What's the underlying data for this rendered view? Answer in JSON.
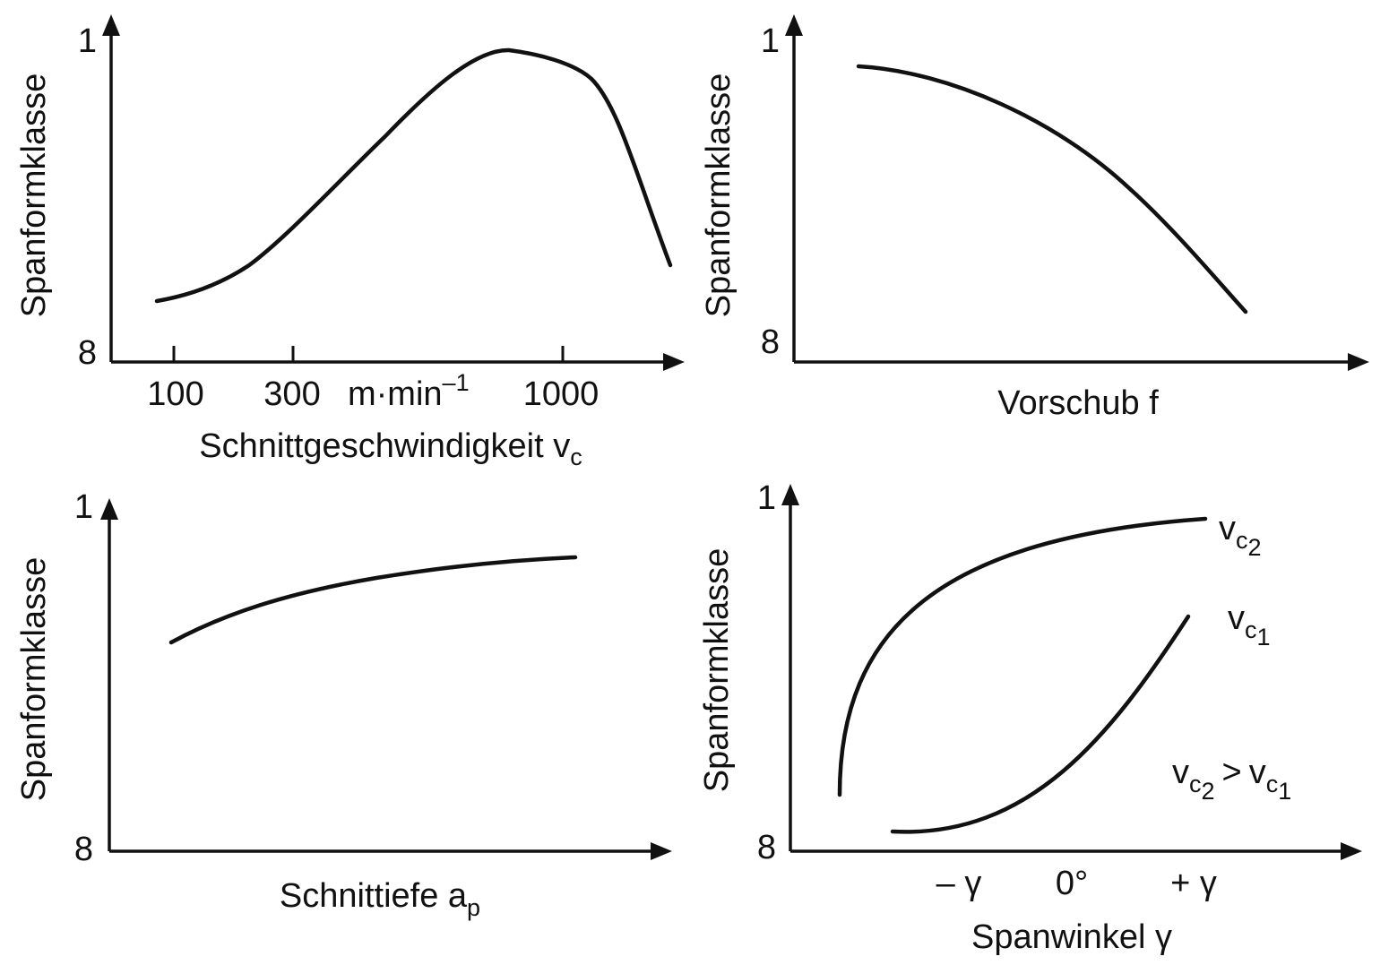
{
  "chart_data": [
    {
      "type": "line",
      "ylabel": "Spanformklasse",
      "y_ticks": [
        "1",
        "8"
      ],
      "xlabel": "Schnittgeschwindigkeit v",
      "xlabel_sub": "c",
      "x_scale": "log",
      "x_ticks": [
        "100",
        "300",
        "1000"
      ],
      "x_unit": "m·min",
      "x_unit_sup": "–1",
      "series": [
        {
          "name": "",
          "points": [
            [
              80,
              7.35
            ],
            [
              140,
              7.15
            ],
            [
              200,
              6.9
            ],
            [
              320,
              5.8
            ],
            [
              500,
              4.5
            ],
            [
              700,
              3.3
            ],
            [
              900,
              2.0
            ],
            [
              1100,
              1.7
            ],
            [
              1300,
              1.9
            ],
            [
              1600,
              2.5
            ],
            [
              2000,
              4.5
            ],
            [
              2500,
              6.8
            ]
          ]
        }
      ]
    },
    {
      "type": "line",
      "ylabel": "Spanformklasse",
      "y_ticks": [
        "1",
        "8"
      ],
      "xlabel": "Vorschub f",
      "series": [
        {
          "name": "",
          "points": [
            [
              0.1,
              1.6
            ],
            [
              0.2,
              1.9
            ],
            [
              0.3,
              2.6
            ],
            [
              0.4,
              3.5
            ],
            [
              0.5,
              4.6
            ],
            [
              0.6,
              5.9
            ],
            [
              0.72,
              7.4
            ]
          ]
        }
      ]
    },
    {
      "type": "line",
      "ylabel": "Spanformklasse",
      "y_ticks": [
        "1",
        "8"
      ],
      "xlabel": "Schnittiefe a",
      "xlabel_sub": "p",
      "series": [
        {
          "name": "",
          "points": [
            [
              0.1,
              4.2
            ],
            [
              0.25,
              3.4
            ],
            [
              0.4,
              2.95
            ],
            [
              0.55,
              2.7
            ],
            [
              0.7,
              2.55
            ],
            [
              0.82,
              2.45
            ]
          ]
        }
      ]
    },
    {
      "type": "line",
      "ylabel": "Spanformklasse",
      "y_ticks": [
        "1",
        "8"
      ],
      "xlabel": "Spanwinkel γ",
      "x_ticks": [
        "– γ",
        "0°",
        "+ γ"
      ],
      "annotation": {
        "lhs": "v",
        "lhs_sub": "c",
        "lhs_subsub": "2",
        "op": ">",
        "rhs": "v",
        "rhs_sub": "c",
        "rhs_subsub": "1"
      },
      "series": [
        {
          "name": "v",
          "name_sub": "c",
          "name_subsub": "2",
          "points": [
            [
              -2.2,
              6.8
            ],
            [
              -1.8,
              4.5
            ],
            [
              -1.0,
              2.9
            ],
            [
              0.0,
              2.1
            ],
            [
              1.0,
              1.75
            ],
            [
              1.4,
              1.7
            ]
          ]
        },
        {
          "name": "v",
          "name_sub": "c",
          "name_subsub": "1",
          "points": [
            [
              -1.7,
              7.7
            ],
            [
              -1.0,
              7.45
            ],
            [
              0.0,
              6.5
            ],
            [
              0.7,
              5.2
            ],
            [
              1.2,
              3.6
            ]
          ]
        }
      ]
    }
  ]
}
